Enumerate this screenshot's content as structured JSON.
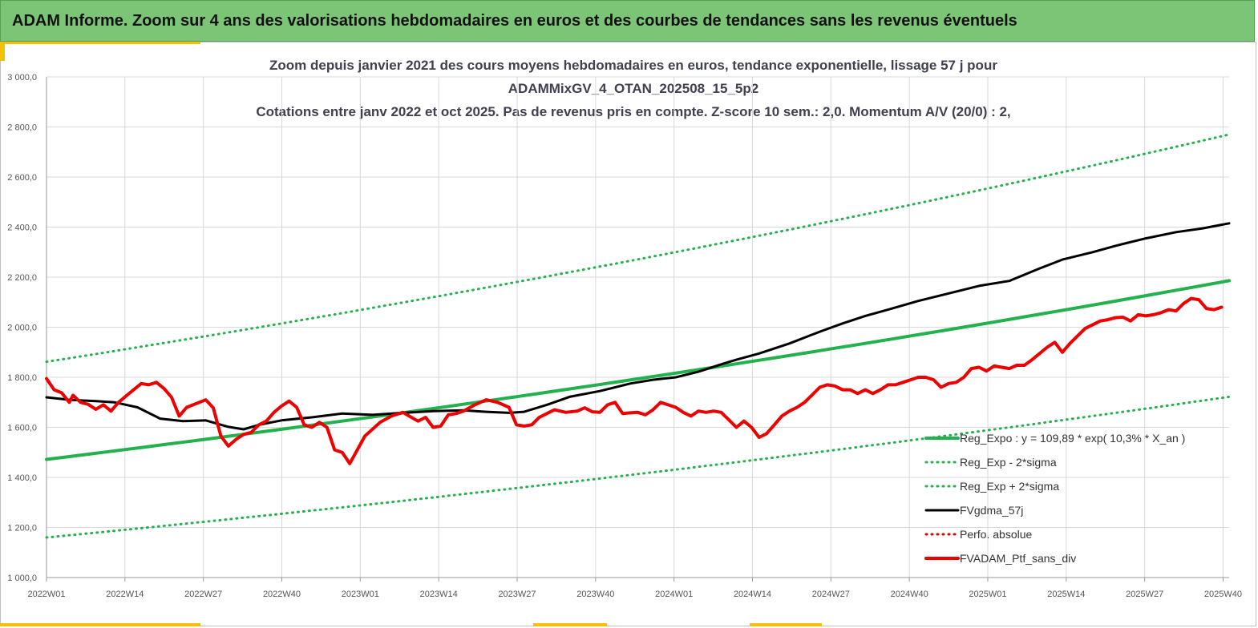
{
  "banner": {
    "title": "ADAM Informe. Zoom sur 4 ans des valorisations hebdomadaires en euros et des courbes de tendances sans les revenus éventuels",
    "color": "#7cc576"
  },
  "chart_data": {
    "type": "line",
    "title_lines": [
      "Zoom depuis janvier 2021 des cours moyens hebdomadaires  en euros, tendance exponentielle, lissage 57 j pour",
      "ADAMMixGV_4_OTAN_202508_15_5p2",
      "Cotations  entre janv 2022 et oct 2025. Pas de revenus pris en compte. Z-score 10 sem.: 2,0. Momentum A/V (20/0) : 2,"
    ],
    "xlabel": "",
    "ylabel": "",
    "ylim": [
      1000,
      3000
    ],
    "grid": true,
    "legend_position": "bottom-right",
    "x_tick_labels": [
      "2022W01",
      "2022W14",
      "2022W27",
      "2022W40",
      "2023W01",
      "2023W14",
      "2023W27",
      "2023W40",
      "2024W01",
      "2024W14",
      "2024W27",
      "2024W40",
      "2025W01",
      "2025W14",
      "2025W27",
      "2025W40"
    ],
    "y_tick_labels": [
      "1 000,0",
      "1 200,0",
      "1 400,0",
      "1 600,0",
      "1 800,0",
      "2 000,0",
      "2 200,0",
      "2 400,0",
      "2 600,0",
      "2 800,0",
      "3 000,0"
    ],
    "y_ticks": [
      1000,
      1200,
      1400,
      1600,
      1800,
      2000,
      2200,
      2400,
      2600,
      2800,
      3000
    ],
    "week_count": 196,
    "series": [
      {
        "name": "Reg_Expo : y = 109,89 * exp( 10,3% *  X_an )",
        "color": "#22b14c",
        "style": "solid",
        "width": 4,
        "start": 1472,
        "end": 2186
      },
      {
        "name": "Reg_Exp - 2*sigma",
        "color": "#22b14c",
        "style": "dotted",
        "width": 3,
        "start": 1160,
        "end": 1722
      },
      {
        "name": "Reg_Exp + 2*sigma",
        "color": "#22b14c",
        "style": "dotted",
        "width": 3,
        "start": 1862,
        "end": 2770
      },
      {
        "name": "FVgdma_57j",
        "color": "#000000",
        "style": "solid",
        "width": 3,
        "points": [
          [
            0,
            1720
          ],
          [
            6,
            1710
          ],
          [
            13,
            1705
          ],
          [
            18,
            1700
          ],
          [
            24,
            1680
          ],
          [
            30,
            1635
          ],
          [
            36,
            1625
          ],
          [
            42,
            1628
          ],
          [
            48,
            1602
          ],
          [
            52,
            1592
          ],
          [
            56,
            1610
          ],
          [
            62,
            1628
          ],
          [
            70,
            1640
          ],
          [
            78,
            1655
          ],
          [
            86,
            1650
          ],
          [
            94,
            1658
          ],
          [
            102,
            1665
          ],
          [
            110,
            1668
          ],
          [
            116,
            1662
          ],
          [
            122,
            1658
          ],
          [
            126,
            1662
          ],
          [
            132,
            1690
          ],
          [
            138,
            1722
          ],
          [
            146,
            1745
          ],
          [
            154,
            1775
          ],
          [
            160,
            1790
          ],
          [
            166,
            1800
          ],
          [
            172,
            1822
          ],
          [
            178,
            1852
          ],
          [
            182,
            1870
          ],
          [
            188,
            1895
          ],
          [
            196,
            1935
          ],
          [
            204,
            1982
          ],
          [
            210,
            2015
          ],
          [
            216,
            2045
          ],
          [
            222,
            2070
          ],
          [
            230,
            2105
          ],
          [
            238,
            2135
          ],
          [
            246,
            2165
          ],
          [
            254,
            2185
          ],
          [
            262,
            2235
          ],
          [
            268,
            2270
          ],
          [
            276,
            2300
          ],
          [
            282,
            2325
          ],
          [
            290,
            2355
          ],
          [
            298,
            2380
          ],
          [
            305,
            2395
          ],
          [
            312,
            2415
          ]
        ]
      },
      {
        "name": "Perfo. absolue",
        "color": "#e00000",
        "style": "dotted",
        "width": 3,
        "points": []
      },
      {
        "name": "FVADAM_Ptf_sans_div",
        "color": "#ee0000",
        "style": "solid",
        "width": 4,
        "points": [
          [
            0,
            1795
          ],
          [
            2,
            1750
          ],
          [
            4,
            1738
          ],
          [
            6,
            1700
          ],
          [
            7,
            1728
          ],
          [
            9,
            1700
          ],
          [
            11,
            1692
          ],
          [
            13,
            1672
          ],
          [
            15,
            1690
          ],
          [
            17,
            1665
          ],
          [
            19,
            1700
          ],
          [
            22,
            1738
          ],
          [
            25,
            1775
          ],
          [
            27,
            1770
          ],
          [
            29,
            1780
          ],
          [
            31,
            1755
          ],
          [
            33,
            1720
          ],
          [
            35,
            1645
          ],
          [
            37,
            1680
          ],
          [
            39,
            1692
          ],
          [
            42,
            1710
          ],
          [
            44,
            1678
          ],
          [
            46,
            1565
          ],
          [
            48,
            1525
          ],
          [
            50,
            1552
          ],
          [
            52,
            1572
          ],
          [
            54,
            1580
          ],
          [
            56,
            1610
          ],
          [
            58,
            1625
          ],
          [
            60,
            1660
          ],
          [
            62,
            1685
          ],
          [
            64,
            1705
          ],
          [
            66,
            1680
          ],
          [
            68,
            1610
          ],
          [
            70,
            1600
          ],
          [
            72,
            1620
          ],
          [
            74,
            1600
          ],
          [
            76,
            1510
          ],
          [
            78,
            1500
          ],
          [
            80,
            1455
          ],
          [
            84,
            1565
          ],
          [
            88,
            1620
          ],
          [
            91,
            1645
          ],
          [
            94,
            1660
          ],
          [
            98,
            1625
          ],
          [
            100,
            1640
          ],
          [
            102,
            1600
          ],
          [
            104,
            1605
          ],
          [
            106,
            1650
          ],
          [
            108,
            1655
          ],
          [
            110,
            1665
          ],
          [
            113,
            1690
          ],
          [
            116,
            1710
          ],
          [
            119,
            1700
          ],
          [
            122,
            1680
          ],
          [
            124,
            1610
          ],
          [
            126,
            1605
          ],
          [
            128,
            1610
          ],
          [
            130,
            1640
          ],
          [
            134,
            1670
          ],
          [
            137,
            1660
          ],
          [
            140,
            1665
          ],
          [
            142,
            1678
          ],
          [
            144,
            1662
          ],
          [
            146,
            1660
          ],
          [
            148,
            1690
          ],
          [
            150,
            1700
          ],
          [
            152,
            1655
          ],
          [
            154,
            1658
          ],
          [
            156,
            1660
          ],
          [
            158,
            1650
          ],
          [
            160,
            1670
          ],
          [
            162,
            1700
          ],
          [
            164,
            1690
          ],
          [
            166,
            1680
          ],
          [
            168,
            1660
          ],
          [
            170,
            1645
          ],
          [
            172,
            1665
          ],
          [
            174,
            1660
          ],
          [
            176,
            1665
          ],
          [
            178,
            1660
          ],
          [
            180,
            1630
          ],
          [
            182,
            1600
          ],
          [
            184,
            1625
          ],
          [
            186,
            1600
          ],
          [
            188,
            1560
          ],
          [
            190,
            1575
          ],
          [
            192,
            1610
          ],
          [
            194,
            1645
          ],
          [
            196,
            1665
          ],
          [
            198,
            1680
          ],
          [
            200,
            1700
          ],
          [
            202,
            1730
          ],
          [
            204,
            1760
          ],
          [
            206,
            1770
          ],
          [
            208,
            1765
          ],
          [
            210,
            1750
          ],
          [
            212,
            1750
          ],
          [
            214,
            1735
          ],
          [
            216,
            1750
          ],
          [
            218,
            1735
          ],
          [
            220,
            1750
          ],
          [
            222,
            1770
          ],
          [
            224,
            1770
          ],
          [
            226,
            1780
          ],
          [
            228,
            1790
          ],
          [
            230,
            1800
          ],
          [
            232,
            1800
          ],
          [
            234,
            1790
          ],
          [
            236,
            1760
          ],
          [
            238,
            1775
          ],
          [
            240,
            1780
          ],
          [
            242,
            1800
          ],
          [
            244,
            1835
          ],
          [
            246,
            1840
          ],
          [
            248,
            1825
          ],
          [
            250,
            1845
          ],
          [
            252,
            1840
          ],
          [
            254,
            1835
          ],
          [
            256,
            1848
          ],
          [
            258,
            1848
          ],
          [
            260,
            1870
          ],
          [
            262,
            1895
          ],
          [
            264,
            1920
          ],
          [
            266,
            1940
          ],
          [
            268,
            1900
          ],
          [
            270,
            1935
          ],
          [
            272,
            1965
          ],
          [
            274,
            1995
          ],
          [
            276,
            2010
          ],
          [
            278,
            2025
          ],
          [
            280,
            2030
          ],
          [
            282,
            2038
          ],
          [
            284,
            2040
          ],
          [
            286,
            2025
          ],
          [
            288,
            2050
          ],
          [
            290,
            2045
          ],
          [
            292,
            2050
          ],
          [
            294,
            2058
          ],
          [
            296,
            2070
          ],
          [
            298,
            2065
          ],
          [
            300,
            2095
          ],
          [
            302,
            2115
          ],
          [
            304,
            2110
          ],
          [
            306,
            2075
          ],
          [
            308,
            2070
          ],
          [
            310,
            2080
          ]
        ]
      }
    ]
  },
  "legend": {
    "items": [
      "Reg_Expo : y = 109,89 * exp( 10,3% *  X_an )",
      "Reg_Exp - 2*sigma",
      "Reg_Exp + 2*sigma",
      "FVgdma_57j",
      "Perfo. absolue",
      "FVADAM_Ptf_sans_div"
    ]
  }
}
